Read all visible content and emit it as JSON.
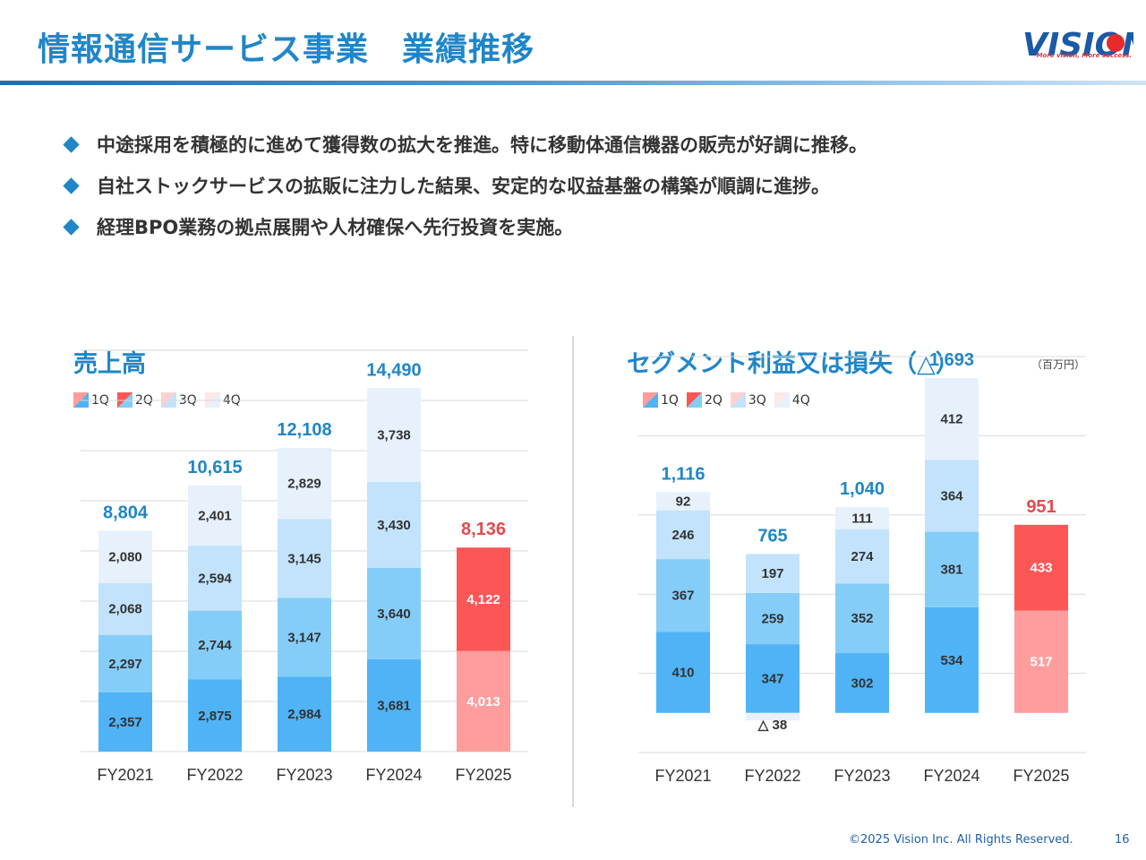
{
  "header": {
    "title": "情報通信サービス事業　業績推移"
  },
  "logo": {
    "brand": "VISION",
    "slogan": "More vision, More success."
  },
  "bullets": [
    "中途採用を積極的に進めて獲得数の拡大を推進。特に移動体通信機器の販売が好調に推移。",
    "自社ストックサービスの拡販に注力した結果、安定的な収益基盤の構築が順調に進捗。",
    "経理BPO業務の拠点展開や人材確保へ先行投資を実施。"
  ],
  "unit_note": "（百万円）",
  "legend": [
    "1Q",
    "2Q",
    "3Q",
    "4Q"
  ],
  "colors": {
    "q1": "#4fb3f6",
    "q2": "#84cdf9",
    "q3": "#c2e3fb",
    "q4": "#e6f1fc",
    "fy2025_q1": "#ff9c9c",
    "fy2025_q2": "#fd5656",
    "total_blue": "#1f86c8",
    "total_red": "#e34a4f"
  },
  "chart_data": [
    {
      "type": "bar",
      "stacked": true,
      "title": "売上高",
      "categories": [
        "FY2021",
        "FY2022",
        "FY2023",
        "FY2024",
        "FY2025"
      ],
      "series": [
        {
          "name": "1Q",
          "values": [
            2357,
            2875,
            2984,
            3681,
            4013
          ],
          "labels": [
            "2,357",
            "2,875",
            "2,984",
            "3,681",
            "4,013"
          ]
        },
        {
          "name": "2Q",
          "values": [
            2297,
            2744,
            3147,
            3640,
            4122
          ],
          "labels": [
            "2,297",
            "2,744",
            "3,147",
            "3,640",
            "4,122"
          ]
        },
        {
          "name": "3Q",
          "values": [
            2068,
            2594,
            3145,
            3430,
            null
          ],
          "labels": [
            "2,068",
            "2,594",
            "3,145",
            "3,430",
            ""
          ]
        },
        {
          "name": "4Q",
          "values": [
            2080,
            2401,
            2829,
            3738,
            null
          ],
          "labels": [
            "2,080",
            "2,401",
            "2,829",
            "3,738",
            ""
          ]
        }
      ],
      "totals": [
        8804,
        10615,
        12108,
        14490,
        8136
      ],
      "total_labels": [
        "8,804",
        "10,615",
        "12,108",
        "14,490",
        "8,136"
      ],
      "ylim": [
        0,
        16000
      ],
      "grid": true,
      "legend_position": "top-left"
    },
    {
      "type": "bar",
      "stacked": true,
      "title": "セグメント利益又は損失（△）",
      "categories": [
        "FY2021",
        "FY2022",
        "FY2023",
        "FY2024",
        "FY2025"
      ],
      "series": [
        {
          "name": "1Q",
          "values": [
            410,
            347,
            302,
            534,
            517
          ],
          "labels": [
            "410",
            "347",
            "302",
            "534",
            "517"
          ]
        },
        {
          "name": "2Q",
          "values": [
            367,
            259,
            352,
            381,
            433
          ],
          "labels": [
            "367",
            "259",
            "352",
            "381",
            "433"
          ]
        },
        {
          "name": "3Q",
          "values": [
            246,
            197,
            274,
            364,
            null
          ],
          "labels": [
            "246",
            "197",
            "274",
            "364",
            ""
          ]
        },
        {
          "name": "4Q",
          "values": [
            92,
            -38,
            111,
            412,
            null
          ],
          "labels": [
            "92",
            "△ 38",
            "111",
            "412",
            ""
          ]
        }
      ],
      "totals": [
        1116,
        765,
        1040,
        1693,
        951
      ],
      "total_labels": [
        "1,116",
        "765",
        "1,040",
        "1,693",
        "951"
      ],
      "ylim": [
        -200,
        1800
      ],
      "grid": true,
      "legend_position": "top-left"
    }
  ],
  "footer": {
    "copyright": "©2025 Vision Inc. All Rights Reserved.",
    "page": "16"
  }
}
